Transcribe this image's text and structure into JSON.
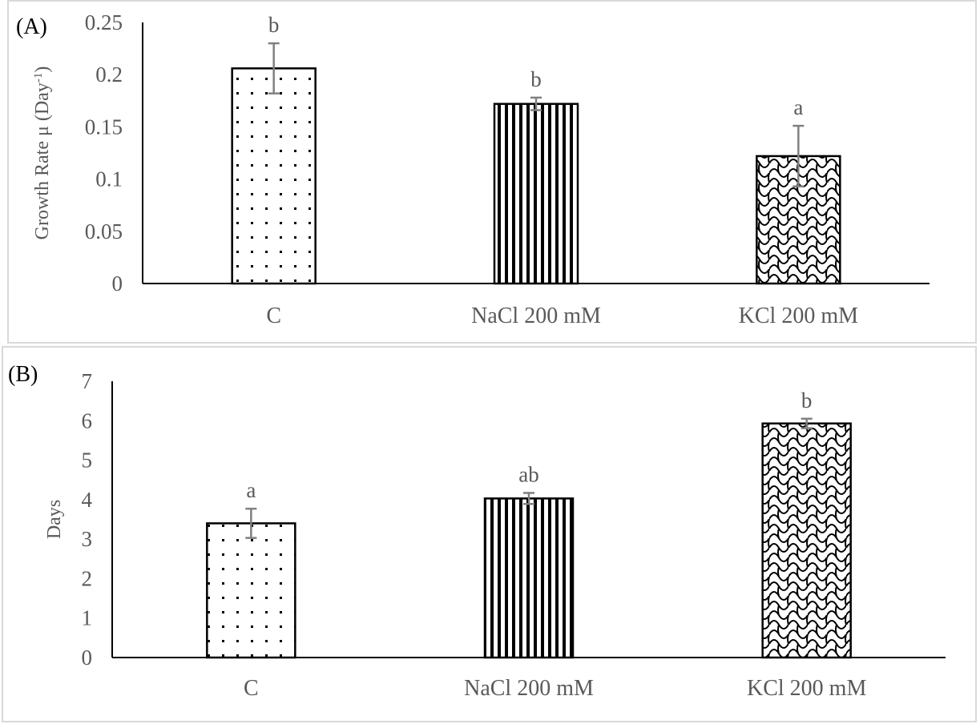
{
  "chart_data": [
    {
      "type": "bar",
      "panel_label": "(A)",
      "ylabel": "Growth Rate μ (Day",
      "ylabel_superscript": "-1",
      "ylabel_suffix": ")",
      "ylim": [
        0,
        0.25
      ],
      "yticks": [
        "0",
        "0.05",
        "0.1",
        "0.15",
        "0.2",
        "0.25"
      ],
      "ytick_values": [
        0,
        0.05,
        0.1,
        0.15,
        0.2,
        0.25
      ],
      "categories": [
        "C",
        "NaCl 200 mM",
        "KCl 200 mM"
      ],
      "values": [
        0.206,
        0.172,
        0.122
      ],
      "errors": [
        0.024,
        0.006,
        0.029
      ],
      "significance_letters": [
        "b",
        "b",
        "a"
      ],
      "patterns": [
        "dots",
        "vertical-stripes",
        "scales"
      ]
    },
    {
      "type": "bar",
      "panel_label": "(B)",
      "ylabel": "Days",
      "ylim": [
        0,
        7
      ],
      "yticks": [
        "0",
        "1",
        "2",
        "3",
        "4",
        "5",
        "6",
        "7"
      ],
      "ytick_values": [
        0,
        1,
        2,
        3,
        4,
        5,
        6,
        7
      ],
      "categories": [
        "C",
        "NaCl 200 mM",
        "KCl 200 mM"
      ],
      "values": [
        3.4,
        4.03,
        5.93
      ],
      "errors": [
        0.37,
        0.14,
        0.12
      ],
      "significance_letters": [
        "a",
        "ab",
        "b"
      ],
      "patterns": [
        "dots",
        "vertical-stripes",
        "scales"
      ]
    }
  ],
  "colors": {
    "axis_text": "#595959",
    "error_bar": "#808080",
    "bar_outline": "#000000",
    "frame": "#d9d9d9"
  }
}
